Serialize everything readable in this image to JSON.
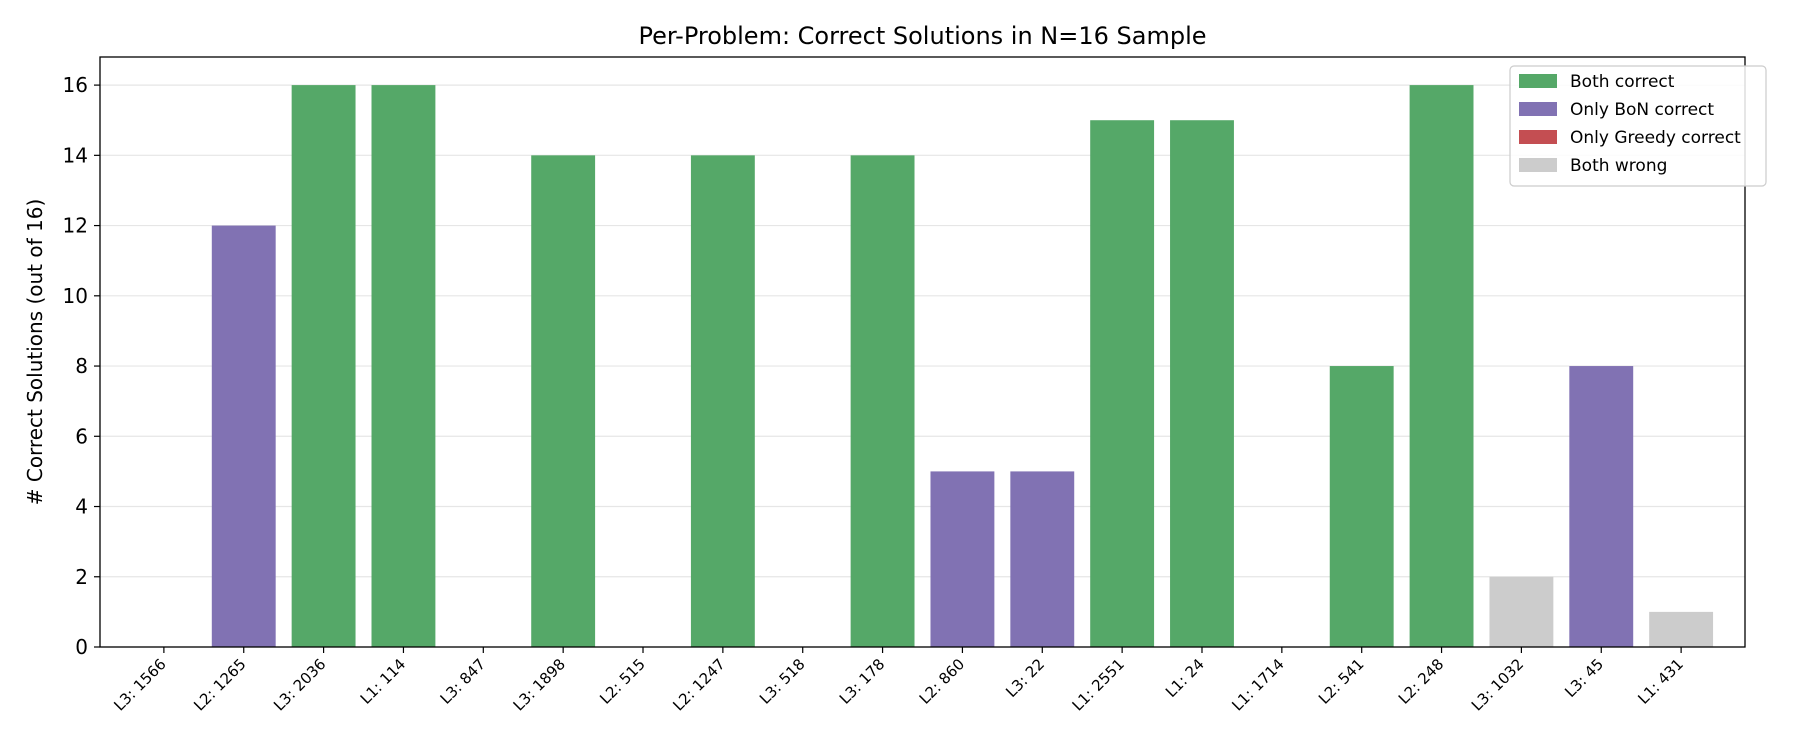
{
  "chart_data": {
    "type": "bar",
    "title": "Per-Problem: Correct Solutions in N=16 Sample",
    "xlabel": "",
    "ylabel": "# Correct Solutions (out of 16)",
    "ylim": [
      0,
      16.8
    ],
    "yticks": [
      0,
      2,
      4,
      6,
      8,
      10,
      12,
      14,
      16
    ],
    "grid": "horizontal",
    "legend_position": "top-right",
    "categories": [
      "L3: 1566",
      "L2: 1265",
      "L3: 2036",
      "L1: 114",
      "L3: 847",
      "L3: 1898",
      "L2: 515",
      "L2: 1247",
      "L3: 518",
      "L3: 178",
      "L2: 860",
      "L3: 22",
      "L1: 2551",
      "L1: 24",
      "L1: 1714",
      "L2: 541",
      "L2: 248",
      "L3: 1032",
      "L3: 45",
      "L1: 431"
    ],
    "values": [
      0,
      12,
      16,
      16,
      0,
      14,
      0,
      14,
      0,
      14,
      5,
      5,
      15,
      15,
      0,
      8,
      16,
      2,
      8,
      1
    ],
    "groups": [
      "both_wrong",
      "only_bon",
      "both_correct",
      "both_correct",
      "both_wrong",
      "both_correct",
      "both_wrong",
      "both_correct",
      "both_wrong",
      "both_correct",
      "only_bon",
      "only_bon",
      "both_correct",
      "both_correct",
      "both_wrong",
      "both_correct",
      "both_correct",
      "both_wrong",
      "only_bon",
      "both_wrong"
    ],
    "legend": [
      {
        "key": "both_correct",
        "label": "Both correct",
        "color": "#55a868"
      },
      {
        "key": "only_bon",
        "label": "Only BoN correct",
        "color": "#8172b3"
      },
      {
        "key": "only_greedy",
        "label": "Only Greedy correct",
        "color": "#c44e52"
      },
      {
        "key": "both_wrong",
        "label": "Both wrong",
        "color": "#cccccc"
      }
    ]
  }
}
